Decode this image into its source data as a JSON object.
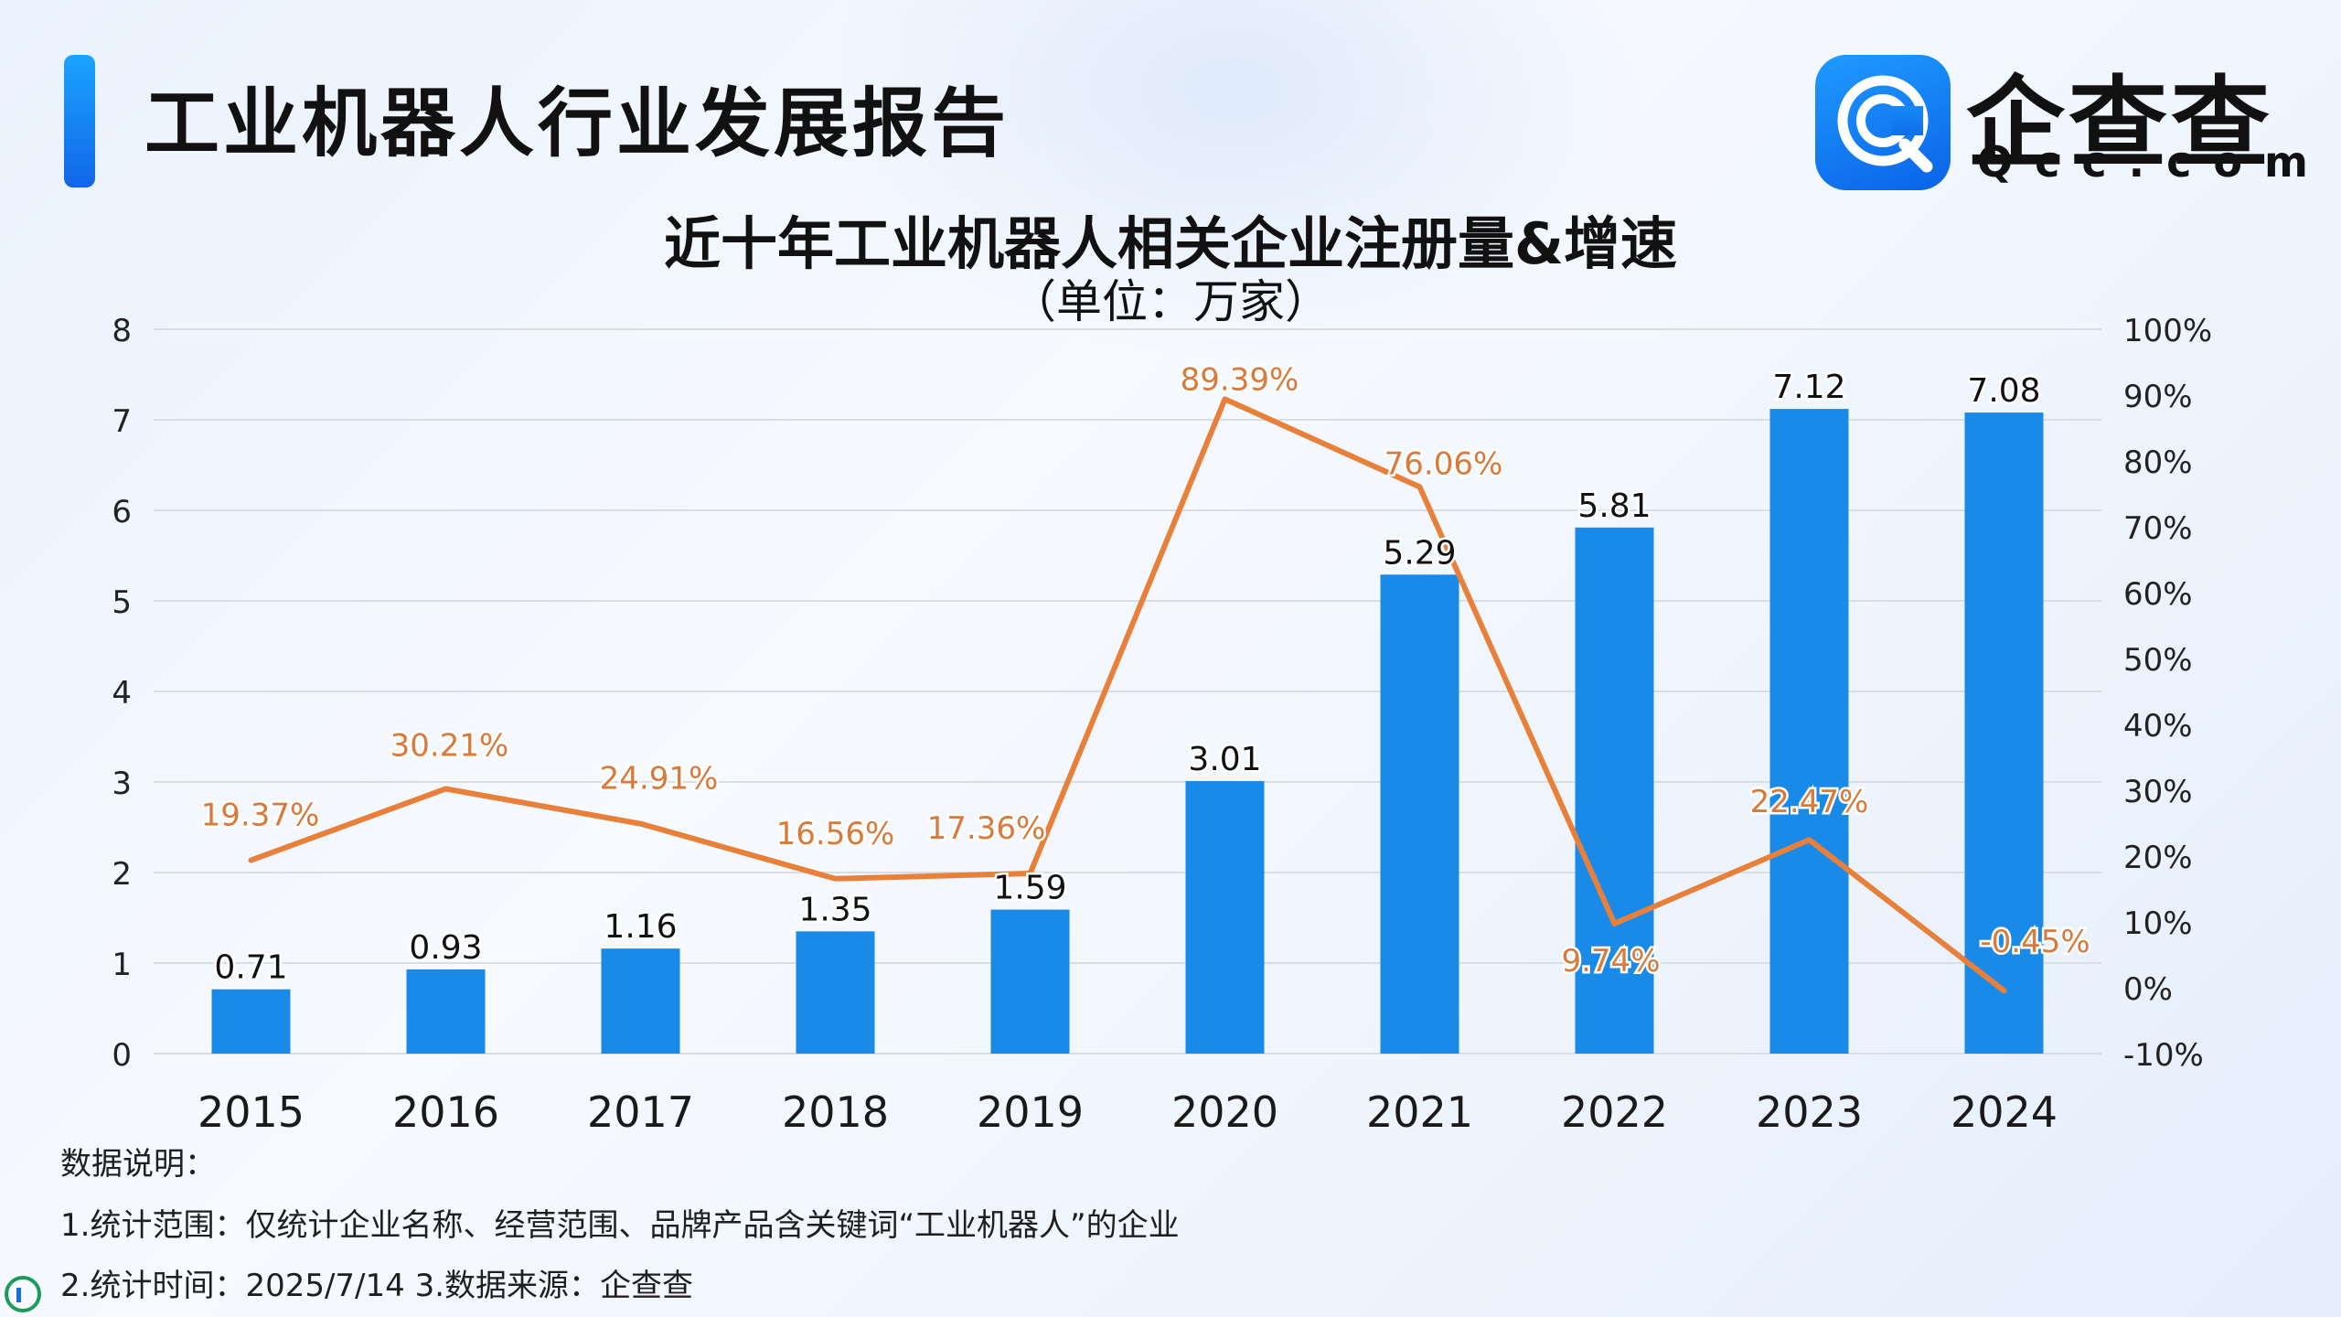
{
  "header": {
    "report_title": "工业机器人行业发展报告"
  },
  "logo": {
    "name": "企查查",
    "domain": "Qcc.com",
    "icon": "qcc-logo-icon",
    "color": "#1677f0"
  },
  "notes": {
    "heading": "数据说明：",
    "line1": "1.统计范围：仅统计企业名称、经营范围、品牌产品含关键词“工业机器人”的企业",
    "line2": "2.统计时间：2025/7/14  3.数据来源：企查查"
  },
  "chart_data": {
    "type": "bar",
    "title": "近十年工业机器人相关企业注册量&增速",
    "subtitle": "（单位：万家）",
    "categories": [
      "2015",
      "2016",
      "2017",
      "2018",
      "2019",
      "2020",
      "2021",
      "2022",
      "2023",
      "2024"
    ],
    "series": [
      {
        "type": "bar",
        "axis": "left",
        "color": "#1a8ae8",
        "values": [
          0.71,
          0.93,
          1.16,
          1.35,
          1.59,
          3.01,
          5.29,
          5.81,
          7.12,
          7.08
        ],
        "labels": [
          "0.71",
          "0.93",
          "1.16",
          "1.35",
          "1.59",
          "3.01",
          "5.29",
          "5.81",
          "7.12",
          "7.08"
        ]
      },
      {
        "type": "line",
        "axis": "right",
        "color": "#e8803a",
        "values": [
          19.37,
          30.21,
          24.91,
          16.56,
          17.36,
          89.39,
          76.06,
          9.74,
          22.47,
          -0.45
        ],
        "labels": [
          "19.37%",
          "30.21%",
          "24.91%",
          "16.56%",
          "17.36%",
          "89.39%",
          "76.06%",
          "9.74%",
          "22.47%",
          "-0.45%"
        ]
      }
    ],
    "y_left": {
      "min": 0,
      "max": 8,
      "ticks": [
        "0",
        "1",
        "2",
        "3",
        "4",
        "5",
        "6",
        "7",
        "8"
      ]
    },
    "y_right": {
      "min": -10,
      "max": 100,
      "ticks": [
        "-10%",
        "0%",
        "10%",
        "20%",
        "30%",
        "40%",
        "50%",
        "60%",
        "70%",
        "80%",
        "90%",
        "100%"
      ]
    },
    "grid": true,
    "legend": "none"
  }
}
